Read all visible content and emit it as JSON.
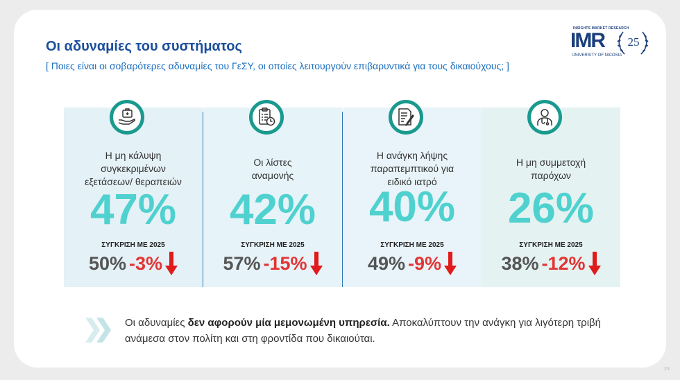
{
  "title": "Οι αδυναμίες του συστήματος",
  "subtitle": "[ Ποιες είναι οι σοβαρότερες αδυναμίες του ΓεΣΥ, οι οποίες λειτουργούν επιβαρυντικά για τους δικαιούχους; ]",
  "logo": {
    "tagline": "INSIGHTS MARKET RESEARCH",
    "name": "IMR",
    "university": "UNIVERSITY OF NICOSIA",
    "anniversary": "25"
  },
  "colors": {
    "title": "#1b4f9c",
    "accent_teal": "#1a9a8e",
    "percent": "#4fd1cf",
    "negative": "#e43434"
  },
  "cards": [
    {
      "icon": "hand-medical-kit-icon",
      "label_lines": [
        "Η μη κάλυψη",
        "συγκεκριμένων",
        "εξετάσεων/ θεραπειών"
      ],
      "percent": "47%",
      "compare_label": "ΣΥΓΚΡΙΣΗ ΜΕ 2025",
      "previous": "50%",
      "delta": "-3%",
      "trend": "down"
    },
    {
      "icon": "clipboard-clock-icon",
      "label_lines": [
        "Οι λίστες",
        "αναμονής"
      ],
      "percent": "42%",
      "compare_label": "ΣΥΓΚΡΙΣΗ ΜΕ 2025",
      "previous": "57%",
      "delta": "-15%",
      "trend": "down"
    },
    {
      "icon": "document-pen-icon",
      "label_lines": [
        "Η ανάγκη λήψης",
        "παραπεμπτικού για",
        "ειδικό ιατρό"
      ],
      "percent": "40%",
      "compare_label": "ΣΥΓΚΡΙΣΗ ΜΕ 2025",
      "previous": "49%",
      "delta": "-9%",
      "trend": "down"
    },
    {
      "icon": "doctor-icon",
      "label_lines": [
        "Η μη συμμετοχή",
        "παρόχων"
      ],
      "percent": "26%",
      "compare_label": "ΣΥΓΚΡΙΣΗ ΜΕ 2025",
      "previous": "38%",
      "delta": "-12%",
      "trend": "down"
    }
  ],
  "note": {
    "before": "Οι αδυναμίες ",
    "bold": "δεν αφορούν μία μεμονωμένη υπηρεσία.",
    "after": " Αποκαλύπτουν την ανάγκη για λιγότερη τριβή ανάμεσα στον πολίτη και στη φροντίδα που δικαιούται.",
    "icon": "double-chevron-right-icon"
  },
  "page_number": "23"
}
